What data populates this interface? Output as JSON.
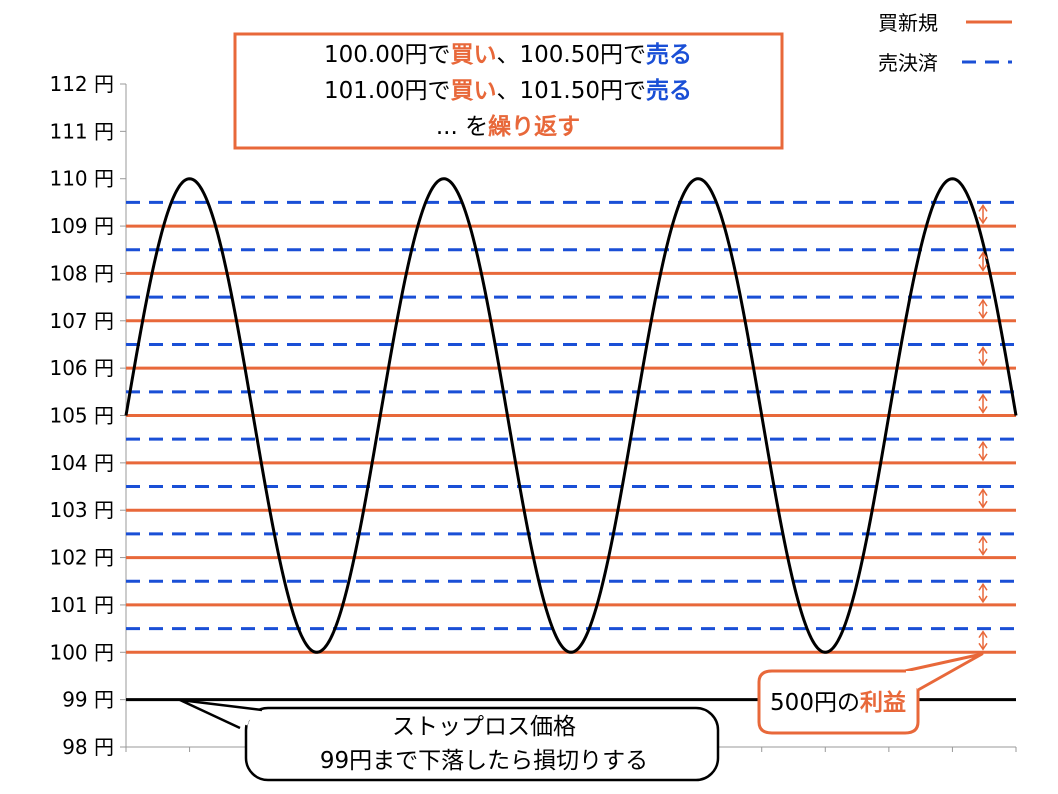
{
  "colors": {
    "buy": "#e8683a",
    "sell": "#1a4fd6",
    "price": "#000000",
    "stop": "#000000",
    "box_border": "#e8683a",
    "grid": "#999999"
  },
  "legend": {
    "buy_label": "買新規",
    "sell_label": "売決済"
  },
  "annotation_top": {
    "line1_a": "100.00円で",
    "line1_b": "買い",
    "line1_c": "、100.50円で",
    "line1_d": "売る",
    "line2_a": "101.00円で",
    "line2_b": "買い",
    "line2_c": "、101.50円で",
    "line2_d": "売る",
    "line3_a": "... を",
    "line3_b": "繰り返す"
  },
  "annotation_profit": {
    "text_a": "500円の",
    "text_b": "利益"
  },
  "annotation_stop": {
    "line1": "ストップロス価格",
    "line2": "99円まで下落したら損切りする"
  },
  "chart_data": {
    "type": "line",
    "title": "",
    "xlabel": "",
    "ylabel": "",
    "ylim": [
      98,
      112
    ],
    "y_ticks": [
      "98 円",
      "99 円",
      "100 円",
      "101 円",
      "102 円",
      "103 円",
      "104 円",
      "105 円",
      "106 円",
      "107 円",
      "108 円",
      "109 円",
      "110 円",
      "111 円",
      "112 円"
    ],
    "y_tick_values": [
      98,
      99,
      100,
      101,
      102,
      103,
      104,
      105,
      106,
      107,
      108,
      109,
      110,
      111,
      112
    ],
    "grid": false,
    "legend_position": "top-right",
    "price_series": {
      "shape": "sine",
      "center": 105,
      "amplitude": 5,
      "periods": 3.5,
      "start_value": 105,
      "end_value": 105
    },
    "buy_levels": [
      100,
      101,
      102,
      103,
      104,
      105,
      106,
      107,
      108,
      109
    ],
    "sell_levels": [
      100.5,
      101.5,
      102.5,
      103.5,
      104.5,
      105.5,
      106.5,
      107.5,
      108.5,
      109.5
    ],
    "stop_loss": 99
  }
}
